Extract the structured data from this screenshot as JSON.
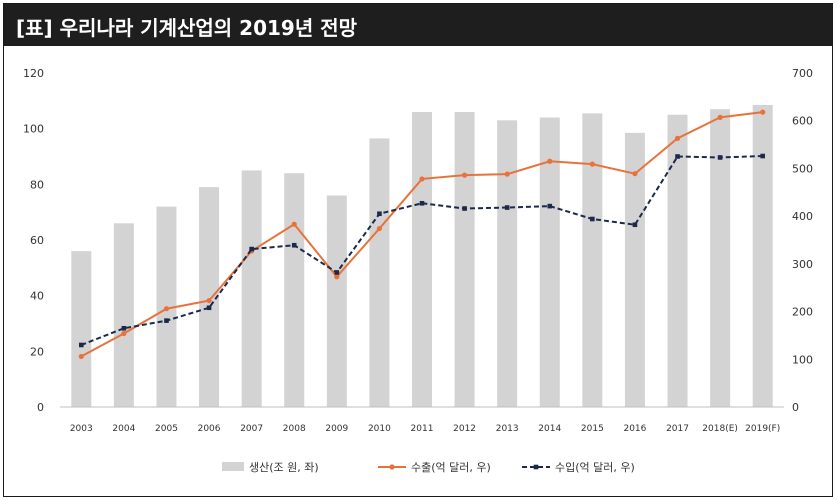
{
  "header": {
    "title": "[표] 우리나라 기계산업의 2019년 전망"
  },
  "chart_data": {
    "type": "bar",
    "categories": [
      "2003",
      "2004",
      "2005",
      "2006",
      "2007",
      "2008",
      "2009",
      "2010",
      "2011",
      "2012",
      "2013",
      "2014",
      "2015",
      "2016",
      "2017",
      "2018(E)",
      "2019(F)"
    ],
    "series": [
      {
        "name": "생산(조 원, 좌)",
        "type": "bar",
        "axis": "left",
        "values": [
          56,
          66,
          72,
          79,
          85,
          84,
          76,
          96.5,
          106,
          106,
          103,
          104,
          105.5,
          98.5,
          105,
          107,
          108.5
        ]
      },
      {
        "name": "수출(억 달러, 우)",
        "type": "line",
        "axis": "right",
        "values": [
          106,
          154,
          206,
          223,
          327,
          383,
          273,
          374,
          478,
          486,
          488,
          515,
          509,
          489,
          563,
          607,
          618
        ]
      },
      {
        "name": "수입(억 달러, 우)",
        "type": "line",
        "axis": "right",
        "values": [
          130,
          165,
          181,
          208,
          331,
          339,
          282,
          405,
          427,
          416,
          418,
          421,
          394,
          382,
          525,
          523,
          526
        ]
      }
    ],
    "left_axis": {
      "ylim": [
        0,
        120
      ],
      "ticks": [
        "0",
        "20",
        "40",
        "60",
        "80",
        "100",
        "120"
      ]
    },
    "right_axis": {
      "ylim": [
        0,
        700
      ],
      "ticks": [
        "0",
        "100",
        "200",
        "300",
        "400",
        "500",
        "600",
        "700"
      ]
    },
    "legend_position": "bottom",
    "grid": false,
    "colors": {
      "bar": "#d3d3d3",
      "export": "#e8733a",
      "import": "#1b2a4a"
    }
  }
}
